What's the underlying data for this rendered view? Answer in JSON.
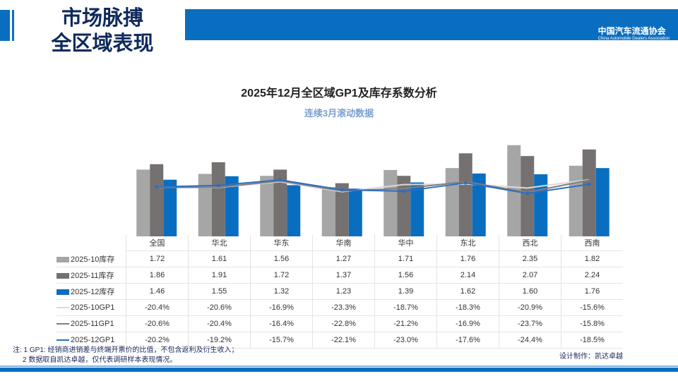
{
  "header": {
    "title_line1": "市场脉搏",
    "title_line2": "全区域表现",
    "logo_cn": "中国汽车流通协会",
    "logo_en": "China Automobile Dealers Association"
  },
  "chart_data": {
    "type": "bar",
    "title": "2025年12月全区域GP1及库存系数分析",
    "subtitle": "连续3月滚动数据",
    "categories": [
      "全国",
      "华北",
      "华东",
      "华南",
      "华中",
      "东北",
      "西北",
      "西南"
    ],
    "series": [
      {
        "name": "2025-10库存",
        "kind": "bar",
        "color": "#a6a6a6",
        "values": [
          1.72,
          1.61,
          1.56,
          1.27,
          1.71,
          1.76,
          2.35,
          1.82
        ],
        "labels": [
          "1.72",
          "1.61",
          "1.56",
          "1.27",
          "1.71",
          "1.76",
          "2.35",
          "1.82"
        ]
      },
      {
        "name": "2025-11库存",
        "kind": "bar",
        "color": "#767171",
        "values": [
          1.86,
          1.91,
          1.72,
          1.37,
          1.56,
          2.14,
          2.07,
          2.24
        ],
        "labels": [
          "1.86",
          "1.91",
          "1.72",
          "1.37",
          "1.56",
          "2.14",
          "2.07",
          "2.24"
        ]
      },
      {
        "name": "2025-12库存",
        "kind": "bar",
        "color": "#0a6ec0",
        "values": [
          1.46,
          1.55,
          1.32,
          1.23,
          1.39,
          1.62,
          1.6,
          1.76
        ],
        "labels": [
          "1.46",
          "1.55",
          "1.32",
          "1.23",
          "1.39",
          "1.62",
          "1.60",
          "1.76"
        ]
      },
      {
        "name": "2025-10GP1",
        "kind": "line",
        "color": "#d9d9d9",
        "values": [
          -20.4,
          -20.6,
          -16.9,
          -23.3,
          -18.7,
          -18.3,
          -20.9,
          -15.6
        ],
        "labels": [
          "-20.4%",
          "-20.6%",
          "-16.9%",
          "-23.3%",
          "-18.7%",
          "-18.3%",
          "-20.9%",
          "-15.6%"
        ]
      },
      {
        "name": "2025-11GP1",
        "kind": "line",
        "color": "#808080",
        "values": [
          -20.6,
          -20.4,
          -16.4,
          -22.8,
          -21.2,
          -16.9,
          -23.7,
          -15.8
        ],
        "labels": [
          "-20.6%",
          "-20.4%",
          "-16.4%",
          "-22.8%",
          "-21.2%",
          "-16.9%",
          "-23.7%",
          "-15.8%"
        ]
      },
      {
        "name": "2025-12GP1",
        "kind": "line",
        "color": "#2e6fc0",
        "marker": "dot",
        "values": [
          -20.2,
          -19.2,
          -15.7,
          -22.1,
          -23.0,
          -17.6,
          -24.4,
          -18.5
        ],
        "labels": [
          "-20.2%",
          "-19.2%",
          "-15.7%",
          "-22.1%",
          "-23.0%",
          "-17.6%",
          "-24.4%",
          "-18.5%"
        ]
      }
    ],
    "legend": "data-table",
    "grid": false
  },
  "notes": {
    "line1": "注: 1 GP1: 经销商进销差与终端开票价的比值，不包含返利及衍生收入；",
    "line2": "2 数据取自凯达卓越，仅代表调研样本表现情况。",
    "design": "设计制作：凯达卓越"
  }
}
